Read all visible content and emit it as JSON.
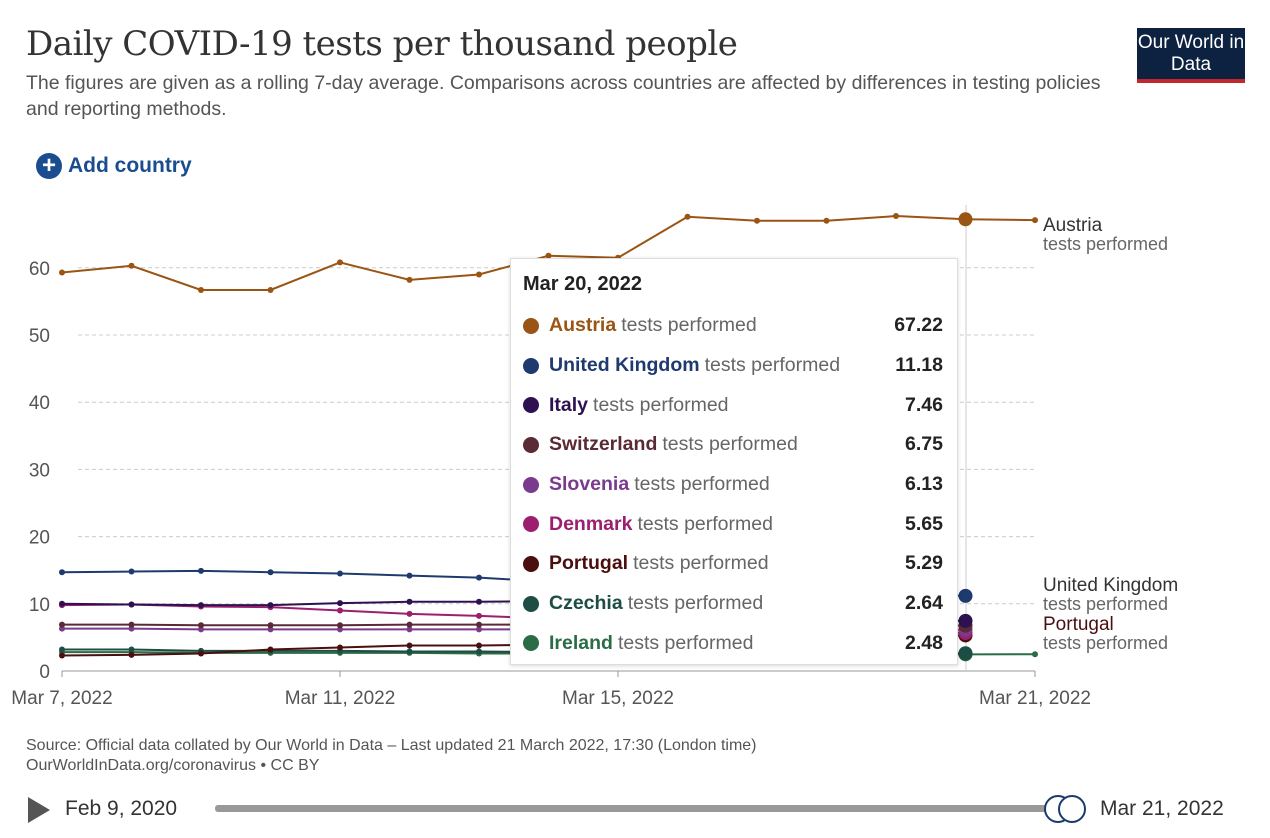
{
  "header": {
    "title": "Daily COVID-19 tests per thousand people",
    "subtitle": "The figures are given as a rolling 7-day average. Comparisons across countries are affected by differences in testing policies and reporting methods.",
    "logo": "Our World in Data"
  },
  "controls": {
    "add_country": "Add country",
    "timeline_start": "Feb 9, 2020",
    "timeline_end": "Mar 21, 2022"
  },
  "footer": {
    "source": "Source: Official data collated by Our World in Data – Last updated 21 March 2022, 17:30 (London time)",
    "link": "OurWorldInData.org/coronavirus • CC BY"
  },
  "tooltip": {
    "date": "Mar 20, 2022",
    "suffix": "tests performed"
  },
  "chart_data": {
    "type": "line",
    "title": "Daily COVID-19 tests per thousand people",
    "x": [
      "Mar 7, 2022",
      "Mar 8, 2022",
      "Mar 9, 2022",
      "Mar 10, 2022",
      "Mar 11, 2022",
      "Mar 12, 2022",
      "Mar 13, 2022",
      "Mar 14, 2022",
      "Mar 15, 2022",
      "Mar 16, 2022",
      "Mar 17, 2022",
      "Mar 18, 2022",
      "Mar 19, 2022",
      "Mar 20, 2022",
      "Mar 21, 2022"
    ],
    "x_ticks": [
      "Mar 7, 2022",
      "Mar 11, 2022",
      "Mar 15, 2022",
      "Mar 21, 2022"
    ],
    "y_ticks": [
      0,
      10,
      20,
      30,
      40,
      50,
      60
    ],
    "ylim": [
      0,
      70
    ],
    "grid": "horizontal dashed",
    "series": [
      {
        "name": "Austria",
        "color": "#9a5414",
        "values": [
          59.3,
          60.3,
          56.7,
          56.7,
          60.8,
          58.2,
          59.0,
          61.8,
          61.5,
          67.6,
          67.0,
          67.0,
          67.7,
          67.22,
          67.1
        ]
      },
      {
        "name": "United Kingdom",
        "color": "#1f3a6e",
        "values": [
          14.7,
          14.8,
          14.9,
          14.7,
          14.5,
          14.2,
          13.9,
          13.3,
          12.8,
          12.4,
          12.0,
          11.7,
          11.4,
          11.18,
          null
        ]
      },
      {
        "name": "Italy",
        "color": "#2d1150",
        "values": [
          10.0,
          9.9,
          9.8,
          9.8,
          10.1,
          10.3,
          10.3,
          10.4,
          9.5,
          8.8,
          8.3,
          7.9,
          7.6,
          7.46,
          null
        ]
      },
      {
        "name": "Switzerland",
        "color": "#5a2a35",
        "values": [
          6.9,
          6.9,
          6.8,
          6.8,
          6.8,
          6.9,
          6.9,
          6.9,
          6.9,
          6.8,
          6.8,
          6.8,
          6.8,
          6.75,
          null
        ]
      },
      {
        "name": "Slovenia",
        "color": "#7a3b8e",
        "values": [
          6.3,
          6.3,
          6.2,
          6.2,
          6.2,
          6.2,
          6.2,
          6.2,
          6.2,
          6.2,
          6.1,
          6.1,
          6.1,
          6.13,
          null
        ]
      },
      {
        "name": "Denmark",
        "color": "#9b1f6e",
        "values": [
          9.8,
          9.9,
          9.6,
          9.5,
          9.0,
          8.5,
          8.2,
          7.8,
          7.3,
          6.8,
          6.4,
          6.0,
          5.8,
          5.65,
          null
        ]
      },
      {
        "name": "Portugal",
        "color": "#4a0f0f",
        "values": [
          2.3,
          2.4,
          2.6,
          3.2,
          3.5,
          3.8,
          3.8,
          3.9,
          4.2,
          4.5,
          4.8,
          5.0,
          5.2,
          5.29,
          null
        ]
      },
      {
        "name": "Czechia",
        "color": "#1d4d44",
        "values": [
          3.2,
          3.2,
          3.0,
          3.0,
          3.0,
          2.9,
          2.9,
          2.8,
          2.8,
          2.7,
          2.7,
          2.7,
          2.6,
          2.64,
          null
        ]
      },
      {
        "name": "Ireland",
        "color": "#2b6b45",
        "values": [
          2.8,
          2.8,
          2.7,
          2.7,
          2.7,
          2.7,
          2.6,
          2.6,
          2.6,
          2.6,
          2.5,
          2.5,
          2.5,
          2.48,
          2.5
        ]
      }
    ],
    "end_labels": [
      {
        "name": "Austria",
        "sub": "tests performed"
      },
      {
        "name": "United Kingdom",
        "sub": "tests performed"
      },
      {
        "name": "Portugal",
        "sub": "tests performed"
      }
    ]
  }
}
